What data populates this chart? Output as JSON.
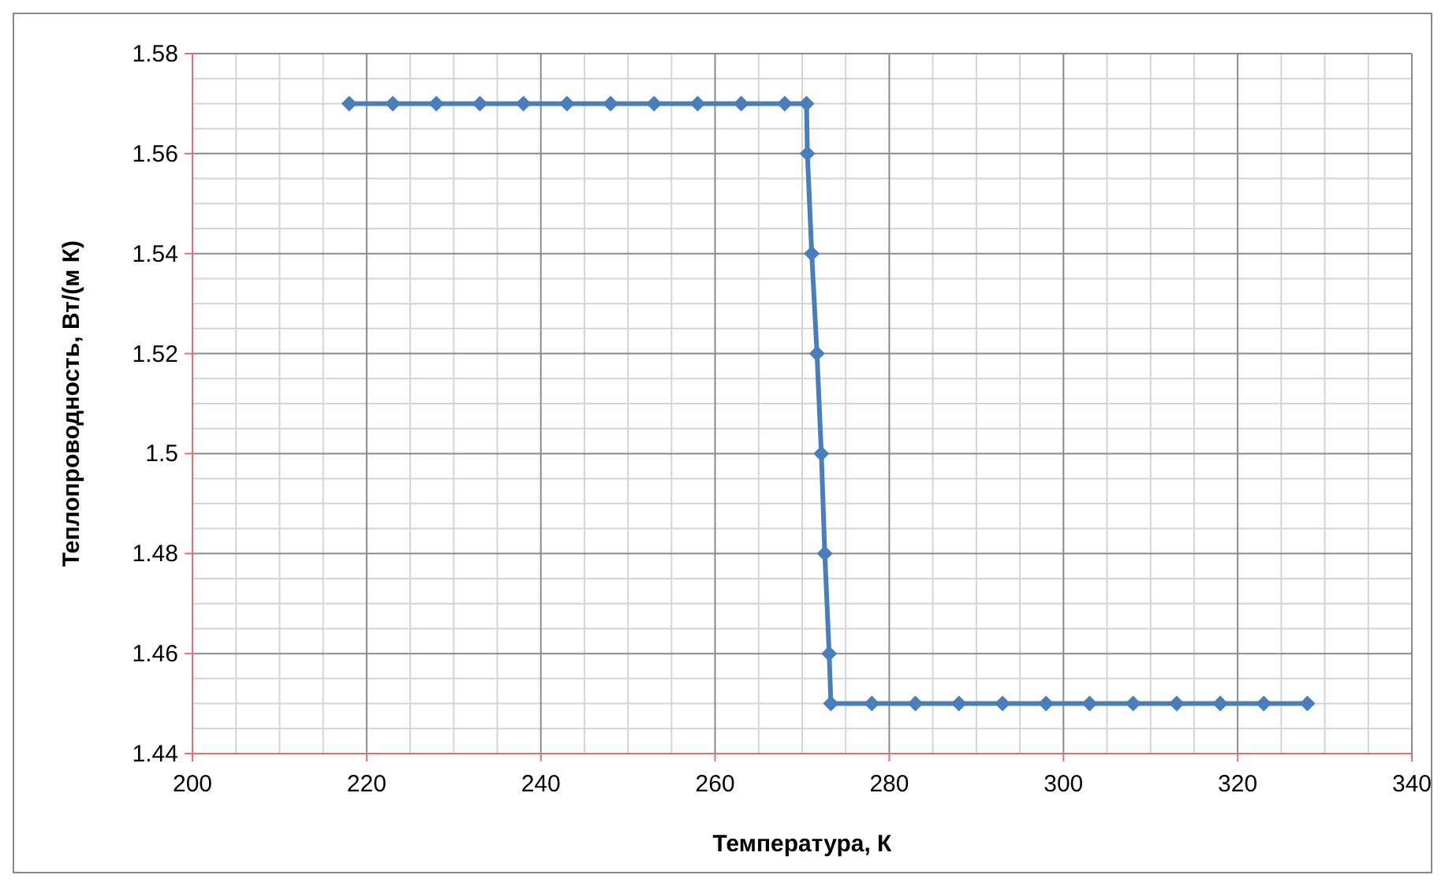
{
  "chart_data": {
    "type": "line",
    "xlabel": "Температура, К",
    "ylabel": "Теплопроводность, Вт/(м К)",
    "x": [
      218,
      223,
      228,
      233,
      238,
      243,
      248,
      253,
      258,
      263,
      268,
      270.5,
      270.6,
      271.1,
      271.7,
      272.2,
      272.6,
      273.1,
      273.3,
      278,
      283,
      288,
      293,
      298,
      303,
      308,
      313,
      318,
      323,
      328
    ],
    "series": [
      {
        "color": "#4a7ebb",
        "values": [
          1.57,
          1.57,
          1.57,
          1.57,
          1.57,
          1.57,
          1.57,
          1.57,
          1.57,
          1.57,
          1.57,
          1.57,
          1.56,
          1.54,
          1.52,
          1.5,
          1.48,
          1.46,
          1.45,
          1.45,
          1.45,
          1.45,
          1.45,
          1.45,
          1.45,
          1.45,
          1.45,
          1.45,
          1.45,
          1.45
        ]
      }
    ],
    "xlim": [
      200,
      340
    ],
    "xticks": [
      200,
      220,
      240,
      260,
      280,
      300,
      320,
      340
    ],
    "ylim": [
      1.44,
      1.58
    ],
    "yticks": [
      1.44,
      1.46,
      1.48,
      1.5,
      1.52,
      1.54,
      1.56,
      1.58
    ],
    "grid": true,
    "marker": "diamond",
    "line_style": "solid"
  }
}
